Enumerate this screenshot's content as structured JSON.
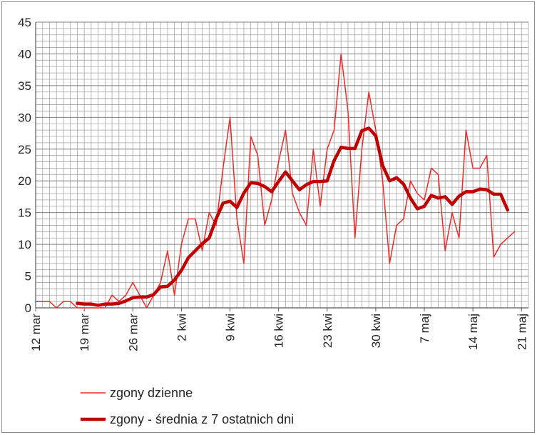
{
  "chart_data": {
    "type": "line",
    "ylim": [
      0,
      45
    ],
    "yticks": [
      "0",
      "5",
      "10",
      "15",
      "20",
      "25",
      "30",
      "35",
      "40",
      "45"
    ],
    "x_start": "2020-03-12",
    "x_end": "2020-05-22",
    "xticks": [
      {
        "date": "2020-03-12",
        "label": "12 mar"
      },
      {
        "date": "2020-03-19",
        "label": "19 mar"
      },
      {
        "date": "2020-03-26",
        "label": "26 mar"
      },
      {
        "date": "2020-04-02",
        "label": "2 kwi"
      },
      {
        "date": "2020-04-09",
        "label": "9 kwi"
      },
      {
        "date": "2020-04-16",
        "label": "16 kwi"
      },
      {
        "date": "2020-04-23",
        "label": "23 kwi"
      },
      {
        "date": "2020-04-30",
        "label": "30 kwi"
      },
      {
        "date": "2020-05-07",
        "label": "7 maj"
      },
      {
        "date": "2020-05-14",
        "label": "14 maj"
      },
      {
        "date": "2020-05-21",
        "label": "21 maj"
      }
    ],
    "grid": true,
    "legend": "bottom",
    "series": [
      {
        "name": "zgony dzienne",
        "color": "#ee2a2a",
        "width": "thin",
        "x_start": "2020-03-12",
        "values": [
          1,
          1,
          1,
          0,
          1,
          1,
          0,
          0,
          0,
          0,
          0,
          2,
          1,
          2,
          4,
          2,
          0,
          2,
          4,
          9,
          2,
          10,
          14,
          14,
          9,
          15,
          13,
          22,
          30,
          14,
          7,
          27,
          24,
          13,
          17,
          23,
          28,
          18,
          15,
          13,
          25,
          16,
          25,
          28,
          40,
          31,
          11,
          25,
          34,
          28,
          20,
          7,
          13,
          14,
          20,
          18,
          17,
          22,
          21,
          9,
          15,
          11,
          28,
          22,
          22,
          24,
          8,
          10,
          11,
          12
        ]
      },
      {
        "name": "zgony - średnia z 7 ostatnich dni",
        "color": "#c00000",
        "width": "thick",
        "x_start": "2020-03-18",
        "values": [
          0.7,
          0.6,
          0.6,
          0.4,
          0.6,
          0.6,
          0.7,
          1.1,
          1.6,
          1.7,
          1.7,
          2.1,
          3.3,
          3.4,
          4.4,
          5.9,
          7.9,
          9.0,
          10.1,
          11.0,
          14.0,
          16.5,
          16.8,
          15.8,
          18.1,
          19.7,
          19.6,
          19.1,
          18.3,
          19.9,
          21.4,
          20.0,
          18.6,
          19.4,
          19.9,
          19.9,
          20.0,
          23.2,
          25.3,
          25.1,
          25.1,
          27.9,
          28.3,
          27.1,
          22.4,
          20.0,
          20.5,
          19.5,
          17.3,
          15.6,
          16.0,
          17.7,
          17.3,
          17.5,
          16.3,
          17.6,
          18.3,
          18.3,
          18.7,
          18.6,
          17.9,
          17.9,
          15.4
        ]
      }
    ]
  }
}
